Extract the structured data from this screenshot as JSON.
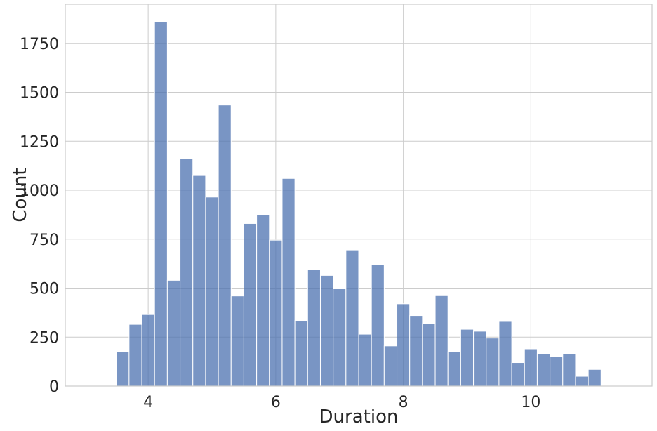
{
  "chart_data": {
    "type": "bar",
    "histogram": true,
    "xlabel": "Duration",
    "ylabel": "Count",
    "xlim": [
      2.7,
      11.9
    ],
    "ylim": [
      0,
      1950
    ],
    "xticks": [
      4,
      6,
      8,
      10
    ],
    "yticks": [
      0,
      250,
      500,
      750,
      1000,
      1250,
      1500,
      1750
    ],
    "grid": true,
    "bin_start": 3.5,
    "bin_width": 0.2,
    "values": [
      175,
      315,
      365,
      1860,
      540,
      1160,
      1075,
      965,
      1435,
      460,
      830,
      875,
      745,
      1060,
      335,
      595,
      565,
      500,
      695,
      265,
      620,
      205,
      420,
      360,
      320,
      465,
      175,
      290,
      280,
      245,
      330,
      120,
      190,
      165,
      150,
      165,
      50,
      85
    ],
    "colors": {
      "bar": "#4c72b0",
      "grid": "#cccccc",
      "text": "#262626"
    }
  }
}
